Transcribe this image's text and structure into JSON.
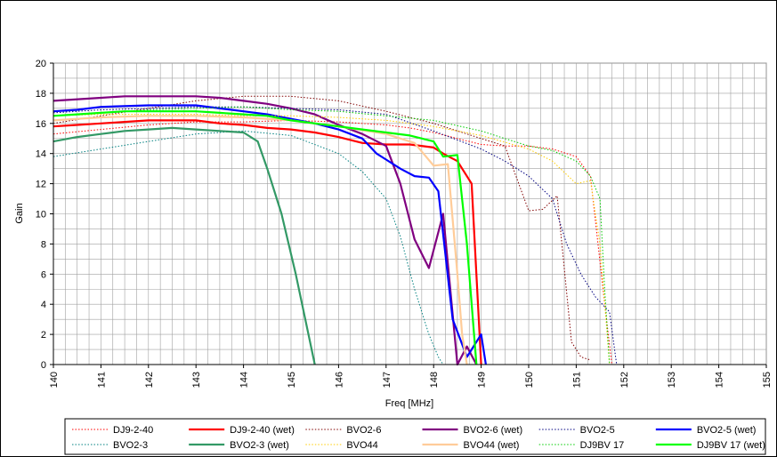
{
  "chart_data": {
    "type": "line",
    "title": "",
    "xlabel": "Freq [MHz]",
    "ylabel": "Gain",
    "xlim": [
      140,
      155
    ],
    "ylim": [
      0,
      20
    ],
    "xticks": [
      "140",
      "141",
      "142",
      "143",
      "144",
      "145",
      "146",
      "147",
      "148",
      "149",
      "150",
      "151",
      "152",
      "153",
      "154",
      "155"
    ],
    "yticks": [
      "0",
      "2",
      "4",
      "6",
      "8",
      "10",
      "12",
      "14",
      "16",
      "18",
      "20"
    ],
    "grid": true,
    "legend_position": "bottom",
    "series": [
      {
        "name": "DJ9-2-40",
        "color": "#ff0000",
        "style": "dotted",
        "x": [
          140,
          141,
          142,
          143,
          144,
          145,
          146,
          147,
          147.5,
          148,
          148.5,
          149,
          149.5,
          150,
          150.5,
          151,
          151.3,
          151.6,
          151.75
        ],
        "y": [
          15.3,
          15.6,
          15.9,
          16.1,
          16.1,
          16.2,
          16.1,
          15.9,
          15.7,
          15.4,
          15.0,
          14.6,
          14.5,
          14.5,
          14.3,
          13.8,
          12.5,
          4,
          0
        ]
      },
      {
        "name": "DJ9-2-40 (wet)",
        "color": "#ff0000",
        "style": "solid",
        "x": [
          140,
          140.5,
          141,
          141.5,
          142,
          142.5,
          143,
          143.5,
          144,
          144.5,
          145,
          145.5,
          146,
          146.5,
          147,
          147.5,
          148,
          148.2,
          148.5,
          148.8,
          149.0
        ],
        "y": [
          15.8,
          15.9,
          16.0,
          16.1,
          16.2,
          16.2,
          16.2,
          16.0,
          15.9,
          15.7,
          15.6,
          15.4,
          15.1,
          14.7,
          14.6,
          14.6,
          14.4,
          14.0,
          13.5,
          12.0,
          0
        ]
      },
      {
        "name": "BVO2-6",
        "color": "#800000",
        "style": "dotted",
        "x": [
          140,
          141,
          142,
          143,
          144,
          145,
          146,
          147,
          148,
          148.5,
          149,
          149.5,
          150,
          150.3,
          150.6,
          150.9,
          151.1,
          151.3
        ],
        "y": [
          16.0,
          16.5,
          17.0,
          17.5,
          17.8,
          17.8,
          17.5,
          16.8,
          16.0,
          15.5,
          15.0,
          14.5,
          10.2,
          10.3,
          11.2,
          1.5,
          0.5,
          0.3
        ]
      },
      {
        "name": "BVO2-6 (wet)",
        "color": "#800080",
        "style": "solid",
        "x": [
          140,
          141,
          141.5,
          142,
          143,
          143.5,
          144,
          144.5,
          145,
          145.5,
          146,
          146.5,
          147,
          147.3,
          147.6,
          147.9,
          148.2,
          148.5,
          148.7,
          148.9
        ],
        "y": [
          17.5,
          17.7,
          17.8,
          17.8,
          17.8,
          17.7,
          17.5,
          17.3,
          17.0,
          16.6,
          15.9,
          15.3,
          14.5,
          12.0,
          8.3,
          6.4,
          10.0,
          0.0,
          1.2,
          0.0
        ]
      },
      {
        "name": "BVO2-5",
        "color": "#000080",
        "style": "dotted",
        "x": [
          140,
          141,
          142,
          143,
          144,
          145,
          146,
          147,
          148,
          149,
          149.5,
          150,
          150.5,
          150.8,
          151.1,
          151.4,
          151.7,
          151.85
        ],
        "y": [
          16.7,
          16.9,
          17.0,
          17.1,
          17.1,
          17.0,
          16.9,
          16.6,
          15.5,
          14.3,
          13.5,
          12.5,
          11.0,
          8.0,
          6.0,
          4.5,
          3.5,
          0
        ]
      },
      {
        "name": "BVO2-5 (wet)",
        "color": "#0000ff",
        "style": "solid",
        "x": [
          140,
          140.5,
          141,
          142,
          142.5,
          143,
          143.5,
          144,
          144.5,
          145,
          145.5,
          146,
          146.5,
          146.8,
          147,
          147.3,
          147.6,
          147.9,
          148.1,
          148.4,
          148.7,
          149,
          149.1
        ],
        "y": [
          16.8,
          16.9,
          17.1,
          17.2,
          17.2,
          17.2,
          17.0,
          16.8,
          16.6,
          16.3,
          16.0,
          15.6,
          15.0,
          14.0,
          13.6,
          13.0,
          12.5,
          12.4,
          11.5,
          3.0,
          0.5,
          2.0,
          0
        ]
      },
      {
        "name": "BVO2-3",
        "color": "#008080",
        "style": "dotted",
        "x": [
          140,
          141,
          142,
          143,
          144,
          145,
          146,
          146.5,
          147,
          147.3,
          147.6,
          147.9,
          148.1,
          148.2
        ],
        "y": [
          13.8,
          14.3,
          14.8,
          15.3,
          15.5,
          15.2,
          14.0,
          12.8,
          11.0,
          8.5,
          5.0,
          2.0,
          0.5,
          0
        ]
      },
      {
        "name": "BVO2-3 (wet)",
        "color": "#339966",
        "style": "solid",
        "x": [
          140,
          140.5,
          141,
          141.5,
          142,
          142.5,
          143,
          143.5,
          144,
          144.3,
          144.5,
          144.8,
          145.1,
          145.3,
          145.5
        ],
        "y": [
          14.8,
          15.1,
          15.3,
          15.5,
          15.6,
          15.7,
          15.6,
          15.5,
          15.4,
          14.8,
          13.0,
          10.0,
          6.0,
          3.0,
          0
        ]
      },
      {
        "name": "BVO44",
        "color": "#ffcc00",
        "style": "dotted",
        "x": [
          140,
          141,
          142,
          143,
          144,
          145,
          146,
          147,
          148,
          149,
          150,
          150.5,
          151,
          151.3,
          151.5,
          151.7
        ],
        "y": [
          16.5,
          16.6,
          16.6,
          16.6,
          16.5,
          16.5,
          16.4,
          16.2,
          15.8,
          15.2,
          14.3,
          13.5,
          12.0,
          12.2,
          8.0,
          0
        ]
      },
      {
        "name": "BVO44 (wet)",
        "color": "#ffcc99",
        "style": "solid",
        "x": [
          140,
          141,
          142,
          143,
          144,
          145,
          146,
          147,
          147.6,
          148,
          148.3,
          148.5,
          148.6,
          148.7
        ],
        "y": [
          16.2,
          16.4,
          16.5,
          16.5,
          16.4,
          16.2,
          15.8,
          15.3,
          14.7,
          13.2,
          13.3,
          6.0,
          2.0,
          0
        ]
      },
      {
        "name": "DJ9BV 17",
        "color": "#00cc00",
        "style": "dotted",
        "x": [
          140,
          141,
          142,
          143,
          144,
          145,
          146,
          147,
          148,
          149,
          149.5,
          150,
          150.5,
          151,
          151.3,
          151.5,
          151.6,
          151.7
        ],
        "y": [
          16.5,
          16.7,
          16.9,
          17.0,
          17.1,
          16.9,
          16.8,
          16.5,
          16.2,
          15.5,
          15.0,
          14.5,
          14.2,
          13.5,
          12.5,
          11.0,
          5.0,
          0
        ]
      },
      {
        "name": "DJ9BV 17 (wet)",
        "color": "#00ff00",
        "style": "solid",
        "x": [
          140,
          140.5,
          141,
          141.5,
          142,
          142.5,
          143,
          143.5,
          144,
          144.5,
          145,
          145.5,
          146,
          146.5,
          147,
          147.5,
          148,
          148.2,
          148.5,
          148.7,
          148.9
        ],
        "y": [
          16.5,
          16.6,
          16.7,
          16.8,
          16.8,
          16.8,
          16.8,
          16.7,
          16.6,
          16.5,
          16.2,
          16.0,
          15.8,
          15.6,
          15.4,
          15.2,
          14.8,
          13.8,
          13.9,
          8.0,
          0
        ]
      }
    ]
  }
}
